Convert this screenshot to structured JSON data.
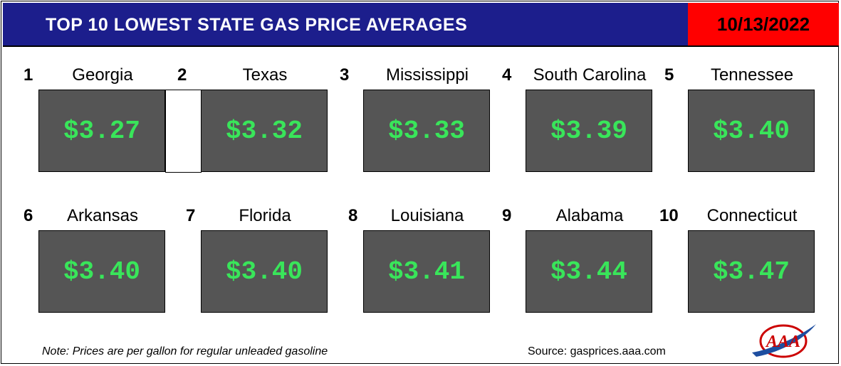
{
  "header": {
    "title": "TOP 10 LOWEST STATE GAS PRICE AVERAGES",
    "date": "10/13/2022"
  },
  "states": [
    {
      "rank": "1",
      "name": "Georgia",
      "price": "$3.27"
    },
    {
      "rank": "2",
      "name": "Texas",
      "price": "$3.32"
    },
    {
      "rank": "3",
      "name": "Mississippi",
      "price": "$3.33"
    },
    {
      "rank": "4",
      "name": "South Carolina",
      "price": "$3.39"
    },
    {
      "rank": "5",
      "name": "Tennessee",
      "price": "$3.40"
    },
    {
      "rank": "6",
      "name": "Arkansas",
      "price": "$3.40"
    },
    {
      "rank": "7",
      "name": "Florida",
      "price": "$3.40"
    },
    {
      "rank": "8",
      "name": "Louisiana",
      "price": "$3.41"
    },
    {
      "rank": "9",
      "name": "Alabama",
      "price": "$3.44"
    },
    {
      "rank": "10",
      "name": "Connecticut",
      "price": "$3.47"
    }
  ],
  "footer": {
    "note": "Note: Prices are per gallon for regular unleaded gasoline",
    "source": "Source: gasprices.aaa.com",
    "logo_text": "AAA"
  },
  "colors": {
    "header_bg": "#1c1e8c",
    "date_bg": "#ff0000",
    "price_box_bg": "#555555",
    "price_text": "#39e55a"
  }
}
